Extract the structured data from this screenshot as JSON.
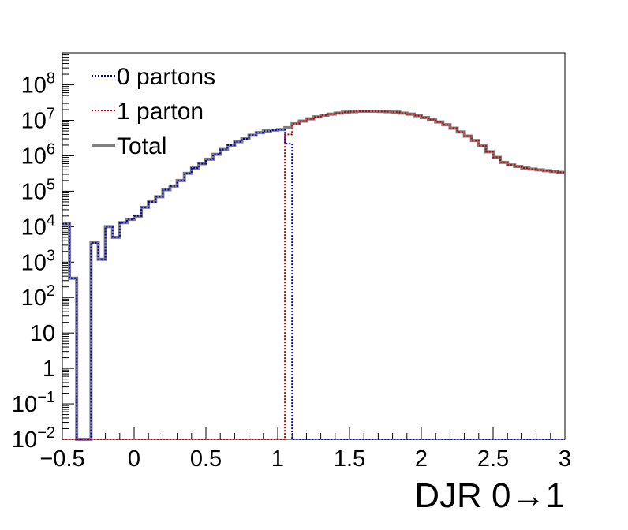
{
  "chart_data": {
    "type": "line",
    "style": "step-histogram",
    "y_scale": "log",
    "xlabel": "DJR 0→1",
    "ylabel": "",
    "xlim": [
      -0.5,
      3.0
    ],
    "ylim": [
      0.01,
      800000000
    ],
    "x_ticks": [
      {
        "value": -0.5,
        "label": "−0.5"
      },
      {
        "value": 0,
        "label": "0"
      },
      {
        "value": 0.5,
        "label": "0.5"
      },
      {
        "value": 1,
        "label": "1"
      },
      {
        "value": 1.5,
        "label": "1.5"
      },
      {
        "value": 2,
        "label": "2"
      },
      {
        "value": 2.5,
        "label": "2.5"
      },
      {
        "value": 3,
        "label": "3"
      }
    ],
    "y_ticks": [
      {
        "value": 0.01,
        "base": "10",
        "exp": "−2"
      },
      {
        "value": 0.1,
        "base": "10",
        "exp": "−1"
      },
      {
        "value": 1,
        "base": "1",
        "exp": ""
      },
      {
        "value": 10,
        "base": "10",
        "exp": ""
      },
      {
        "value": 100,
        "base": "10",
        "exp": "2"
      },
      {
        "value": 1000,
        "base": "10",
        "exp": "3"
      },
      {
        "value": 10000,
        "base": "10",
        "exp": "4"
      },
      {
        "value": 100000,
        "base": "10",
        "exp": "5"
      },
      {
        "value": 1000000,
        "base": "10",
        "exp": "6"
      },
      {
        "value": 10000000,
        "base": "10",
        "exp": "7"
      },
      {
        "value": 100000000,
        "base": "10",
        "exp": "8"
      }
    ],
    "bin_width": 0.05,
    "bins_start": -0.5,
    "series": [
      {
        "name": "0 partons",
        "color": "#0000cc",
        "line_style": "dotted",
        "start": -0.5,
        "values": [
          12000,
          350,
          0,
          0,
          3500,
          1200,
          10000,
          5000,
          13000,
          16000,
          20000,
          35000,
          50000,
          70000,
          110000,
          140000,
          200000,
          320000,
          450000,
          600000,
          800000,
          1100000,
          1500000,
          2000000,
          2500000,
          3000000,
          3800000,
          4500000,
          5000000,
          5300000,
          5500000,
          2200000,
          0,
          0,
          0,
          0,
          0,
          0,
          0,
          0,
          0,
          0,
          0,
          0,
          0,
          0,
          0,
          0,
          0,
          0,
          0,
          0,
          0,
          0,
          0,
          0,
          0,
          0,
          0,
          0,
          0,
          0,
          0,
          0,
          0,
          0,
          0,
          0,
          0,
          0
        ]
      },
      {
        "name": "1 parton",
        "color": "#cc0000",
        "line_style": "dotted",
        "start": -0.5,
        "values": [
          0,
          0,
          0,
          0,
          0,
          0,
          0,
          0,
          0,
          0,
          0,
          0,
          0,
          0,
          0,
          0,
          0,
          0,
          0,
          0,
          0,
          0,
          0,
          0,
          0,
          0,
          0,
          0,
          0,
          0,
          0,
          4000000,
          8000000,
          9500000,
          11000000,
          12500000,
          14000000,
          15000000,
          16000000,
          17000000,
          17500000,
          18000000,
          18000000,
          18000000,
          17800000,
          17500000,
          17000000,
          16000000,
          15000000,
          13500000,
          12000000,
          10500000,
          9000000,
          7500000,
          6000000,
          4700000,
          3600000,
          2700000,
          1900000,
          1300000,
          900000,
          650000,
          550000,
          500000,
          450000,
          420000,
          400000,
          380000,
          360000,
          340000
        ]
      },
      {
        "name": "Total",
        "color": "#808080",
        "line_style": "solid",
        "start": -0.5,
        "values": [
          12000,
          350,
          0,
          0,
          3500,
          1200,
          10000,
          5000,
          13000,
          16000,
          20000,
          35000,
          50000,
          70000,
          110000,
          140000,
          200000,
          320000,
          450000,
          600000,
          800000,
          1100000,
          1500000,
          2000000,
          2500000,
          3000000,
          3800000,
          4500000,
          5000000,
          5300000,
          5500000,
          6200000,
          8000000,
          9500000,
          11000000,
          12500000,
          14000000,
          15000000,
          16000000,
          17000000,
          17500000,
          18000000,
          18000000,
          18000000,
          17800000,
          17500000,
          17000000,
          16000000,
          15000000,
          13500000,
          12000000,
          10500000,
          9000000,
          7500000,
          6000000,
          4700000,
          3600000,
          2700000,
          1900000,
          1300000,
          900000,
          650000,
          550000,
          500000,
          450000,
          420000,
          400000,
          380000,
          360000,
          340000
        ]
      }
    ],
    "legend": {
      "position": "top-left",
      "entries": [
        "0 partons",
        "1 parton",
        "Total"
      ]
    },
    "grid": false
  }
}
